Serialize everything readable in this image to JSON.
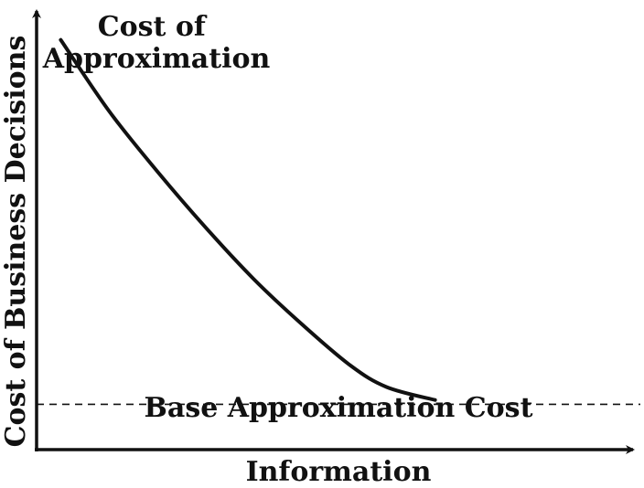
{
  "chart_data": {
    "type": "line",
    "xlabel": "Information",
    "ylabel": "Cost of Business Decisions",
    "grid": false,
    "xlim": [
      0,
      10
    ],
    "ylim": [
      0,
      10
    ],
    "series": [
      {
        "name": "Cost of Approximation",
        "x": [
          0.4,
          1.2,
          2.0,
          2.8,
          3.6,
          4.4,
          5.2,
          5.8,
          6.6
        ],
        "y": [
          9.5,
          7.85,
          6.45,
          5.15,
          3.95,
          2.9,
          1.95,
          1.45,
          1.15
        ]
      }
    ],
    "reference_line": {
      "label": "Base Approximation Cost",
      "y": 1.05,
      "style": "dashed"
    },
    "annotations": [
      {
        "lines": [
          "Cost of",
          "Approximation"
        ]
      }
    ]
  },
  "colors": {
    "ink": "#111111",
    "background": "#ffffff"
  }
}
